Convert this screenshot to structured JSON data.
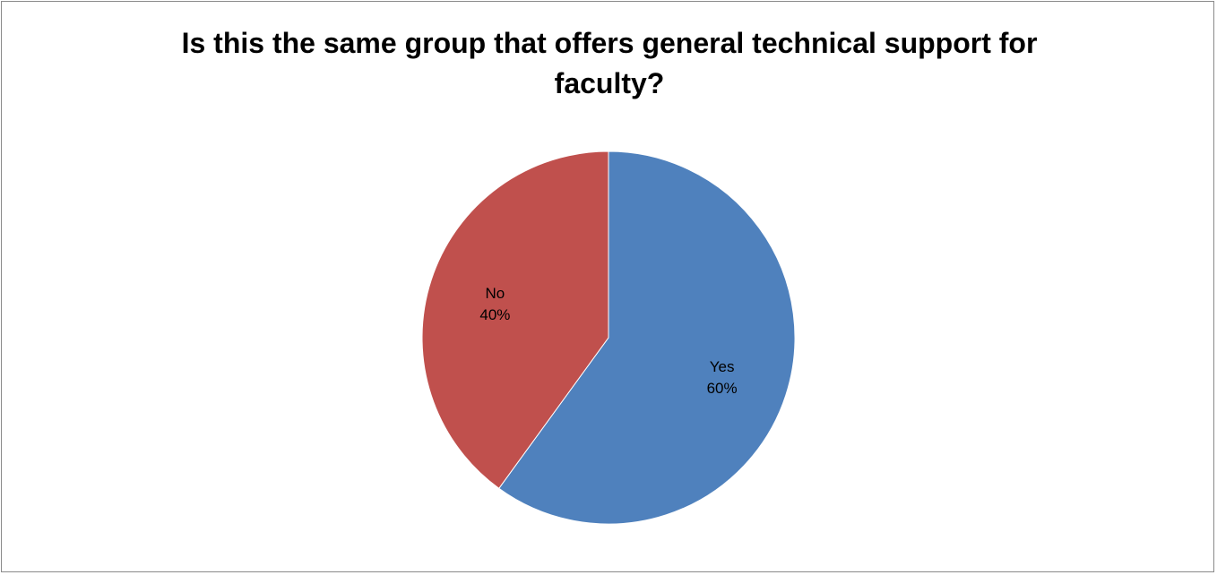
{
  "chart_data": {
    "type": "pie",
    "title": "Is this the same group that offers general technical support for faculty?",
    "categories": [
      "Yes",
      "No"
    ],
    "values": [
      60,
      40
    ],
    "labels": [
      {
        "category": "Yes",
        "percent": "60%"
      },
      {
        "category": "No",
        "percent": "40%"
      }
    ],
    "colors": [
      "#4f81bd",
      "#c0504d"
    ],
    "start_angle_deg": 0,
    "direction": "clockwise",
    "legend": "none"
  }
}
